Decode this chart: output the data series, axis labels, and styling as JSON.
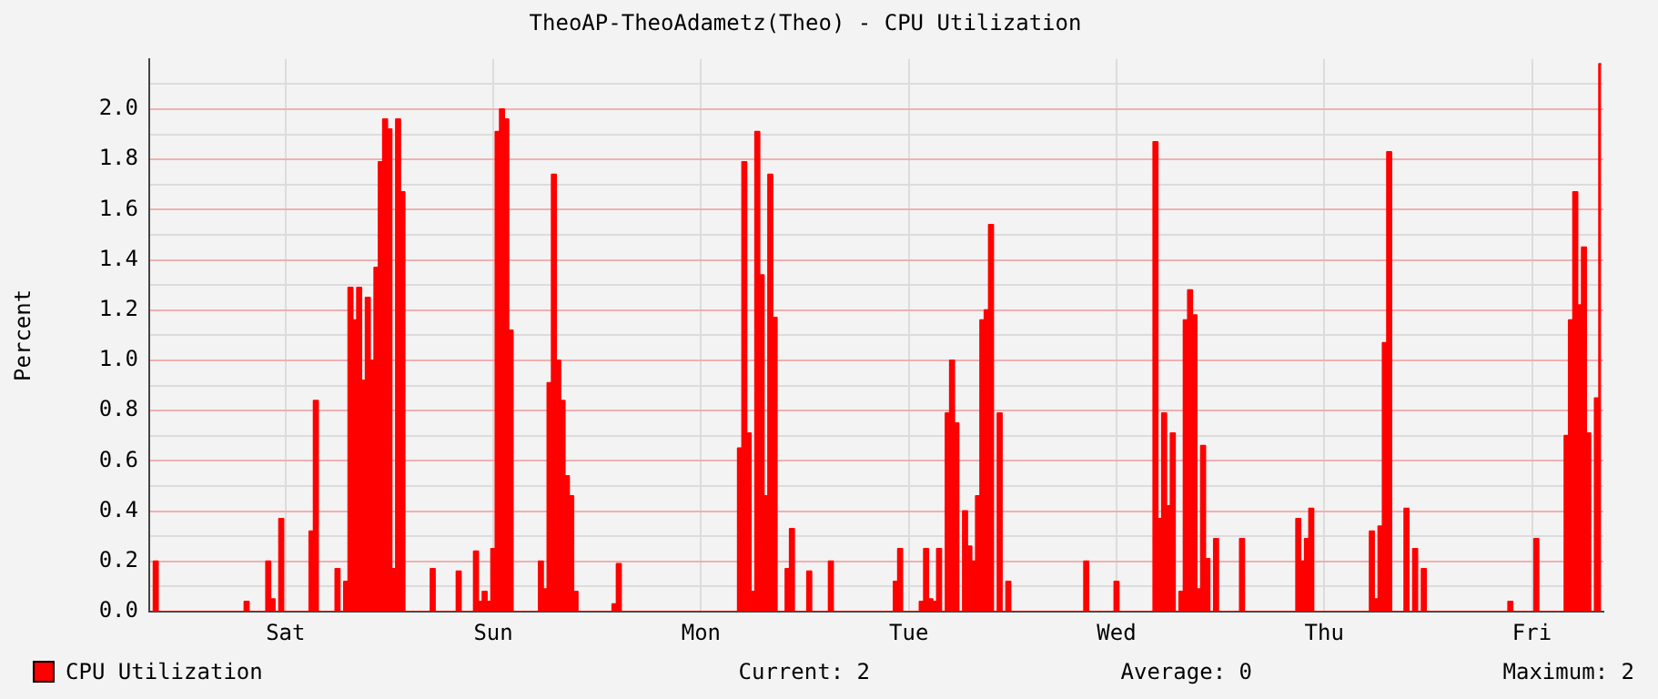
{
  "chart_data": {
    "type": "area",
    "title": "TheoAP-TheoAdametz(Theo) - CPU Utilization",
    "ylabel": "Percent",
    "categories": [
      null,
      null,
      null,
      null,
      null,
      null,
      null,
      null,
      null,
      null,
      null,
      null,
      null,
      null,
      null,
      null,
      null,
      null,
      null,
      null,
      null,
      null,
      null,
      null,
      null,
      null,
      null,
      null,
      null,
      null,
      null,
      "Sat",
      null,
      null,
      null,
      null,
      null,
      null,
      null,
      null,
      null,
      null,
      null,
      null,
      null,
      null,
      null,
      null,
      null,
      null,
      null,
      null,
      null,
      null,
      null,
      null,
      null,
      null,
      null,
      null,
      null,
      null,
      null,
      null,
      null,
      null,
      null,
      null,
      null,
      null,
      null,
      null,
      null,
      null,
      null,
      null,
      null,
      null,
      null,
      "Sun",
      null,
      null,
      null,
      null,
      null,
      null,
      null,
      null,
      null,
      null,
      null,
      null,
      null,
      null,
      null,
      null,
      null,
      null,
      null,
      null,
      null,
      null,
      null,
      null,
      null,
      null,
      null,
      null,
      null,
      null,
      null,
      null,
      null,
      null,
      null,
      null,
      null,
      null,
      null,
      null,
      null,
      null,
      null,
      null,
      null,
      null,
      null,
      "Mon",
      null,
      null,
      null,
      null,
      null,
      null,
      null,
      null,
      null,
      null,
      null,
      null,
      null,
      null,
      null,
      null,
      null,
      null,
      null,
      null,
      null,
      null,
      null,
      null,
      null,
      null,
      null,
      null,
      null,
      null,
      null,
      null,
      null,
      null,
      null,
      null,
      null,
      null,
      null,
      null,
      null,
      null,
      null,
      null,
      null,
      null,
      null,
      "Tue",
      null,
      null,
      null,
      null,
      null,
      null,
      null,
      null,
      null,
      null,
      null,
      null,
      null,
      null,
      null,
      null,
      null,
      null,
      null,
      null,
      null,
      null,
      null,
      null,
      null,
      null,
      null,
      null,
      null,
      null,
      null,
      null,
      null,
      null,
      null,
      null,
      null,
      null,
      null,
      null,
      null,
      null,
      null,
      null,
      null,
      null,
      null,
      "Wed",
      null,
      null,
      null,
      null,
      null,
      null,
      null,
      null,
      null,
      null,
      null,
      null,
      null,
      null,
      null,
      null,
      null,
      null,
      null,
      null,
      null,
      null,
      null,
      null,
      null,
      null,
      null,
      null,
      null,
      null,
      null,
      null,
      null,
      null,
      null,
      null,
      null,
      null,
      null,
      null,
      null,
      null,
      null,
      null,
      null,
      null,
      null,
      "Thu",
      null,
      null,
      null,
      null,
      null,
      null,
      null,
      null,
      null,
      null,
      null,
      null,
      null,
      null,
      null,
      null,
      null,
      null,
      null,
      null,
      null,
      null,
      null,
      null,
      null,
      null,
      null,
      null,
      null,
      null,
      null,
      null,
      null,
      null,
      null,
      null,
      null,
      null,
      null,
      null,
      null,
      null,
      null,
      null,
      null,
      null,
      null,
      "Fri",
      null,
      null,
      null,
      null,
      null,
      null,
      null,
      null,
      null,
      null,
      null,
      null,
      null,
      null,
      null,
      null
    ],
    "ylim": [
      0,
      2.2
    ],
    "yticks": [
      {
        "value": 0,
        "label": "0.0"
      },
      {
        "value": 0.1,
        "label": null
      },
      {
        "value": 0.2,
        "label": "0.2"
      },
      {
        "value": 0.3,
        "label": null
      },
      {
        "value": 0.4,
        "label": "0.4"
      },
      {
        "value": 0.5,
        "label": null
      },
      {
        "value": 0.6,
        "label": "0.6"
      },
      {
        "value": 0.7,
        "label": null
      },
      {
        "value": 0.8,
        "label": "0.8"
      },
      {
        "value": 0.9,
        "label": null
      },
      {
        "value": 1,
        "label": "1.0"
      },
      {
        "value": 1.1,
        "label": null
      },
      {
        "value": 1.2,
        "label": "1.2"
      },
      {
        "value": 1.3,
        "label": null
      },
      {
        "value": 1.4,
        "label": "1.4"
      },
      {
        "value": 1.5,
        "label": null
      },
      {
        "value": 1.6,
        "label": "1.6"
      },
      {
        "value": 1.7,
        "label": null
      },
      {
        "value": 1.8,
        "label": "1.8"
      },
      {
        "value": 1.9,
        "label": null
      },
      {
        "value": 2,
        "label": "2.0"
      },
      {
        "value": 2.1,
        "label": null
      }
    ],
    "grid": true,
    "legend": "bottom",
    "annotations": [
      "Current: 2",
      "Average: 0",
      "Maximum: 2"
    ],
    "series": [
      {
        "name": "CPU Utilization",
        "color": "#ff0000",
        "values": [
          0,
          0.2,
          0,
          0,
          0,
          0,
          0,
          0,
          0,
          0,
          0,
          0,
          0,
          0,
          0,
          0,
          0,
          0,
          0,
          0,
          0,
          0,
          0.04,
          0,
          0,
          0,
          0,
          0.2,
          0.05,
          0,
          0.37,
          0,
          0,
          0,
          0,
          0,
          0,
          0.32,
          0.84,
          0,
          0,
          0,
          0,
          0.17,
          0,
          0.12,
          1.29,
          1.16,
          1.29,
          0.92,
          1.25,
          1.0,
          1.37,
          1.79,
          1.96,
          1.92,
          0.17,
          1.96,
          1.67,
          0,
          0,
          0,
          0,
          0,
          0,
          0.17,
          0,
          0,
          0,
          0,
          0,
          0.16,
          0,
          0,
          0,
          0.24,
          0.04,
          0.08,
          0.04,
          0.25,
          1.91,
          2.0,
          1.96,
          1.12,
          0,
          0,
          0,
          0,
          0,
          0,
          0.2,
          0.09,
          0.91,
          1.74,
          1.0,
          0.84,
          0.54,
          0.46,
          0.08,
          0,
          0,
          0,
          0,
          0,
          0,
          0,
          0,
          0.03,
          0.19,
          0,
          0,
          0,
          0,
          0,
          0,
          0,
          0,
          0,
          0,
          0,
          0,
          0,
          0,
          0,
          0,
          0,
          0,
          0,
          0,
          0,
          0,
          0,
          0,
          0,
          0,
          0,
          0.65,
          1.79,
          0.71,
          0.08,
          1.91,
          1.34,
          0.46,
          1.74,
          1.17,
          0,
          0,
          0.17,
          0.33,
          0,
          0,
          0,
          0.16,
          0,
          0,
          0,
          0,
          0.2,
          0,
          0,
          0,
          0,
          0,
          0,
          0,
          0,
          0,
          0,
          0,
          0,
          0,
          0,
          0.12,
          0.25,
          0,
          0,
          0,
          0,
          0.04,
          0.25,
          0.05,
          0.04,
          0.25,
          0,
          0.79,
          1.0,
          0.75,
          0,
          0.4,
          0.26,
          0.2,
          0.46,
          1.16,
          1.2,
          1.54,
          0,
          0.79,
          0,
          0.12,
          0,
          0,
          0,
          0,
          0,
          0,
          0,
          0,
          0,
          0,
          0,
          0,
          0,
          0,
          0,
          0,
          0,
          0.2,
          0,
          0,
          0,
          0,
          0,
          0,
          0.12,
          0,
          0,
          0,
          0,
          0,
          0,
          0,
          0,
          1.87,
          0.37,
          0.79,
          0.42,
          0.71,
          0,
          0.08,
          1.16,
          1.28,
          1.18,
          0.09,
          0.66,
          0.21,
          0,
          0.29,
          0,
          0,
          0,
          0,
          0,
          0.29,
          0,
          0,
          0,
          0,
          0,
          0,
          0,
          0,
          0,
          0,
          0,
          0,
          0.37,
          0.2,
          0.29,
          0.41,
          0,
          0,
          0,
          0,
          0,
          0,
          0,
          0,
          0,
          0,
          0,
          0,
          0,
          0.32,
          0.05,
          0.34,
          1.07,
          1.83,
          0,
          0,
          0,
          0.41,
          0,
          0.25,
          0,
          0.17,
          0,
          0,
          0,
          0,
          0,
          0,
          0,
          0,
          0,
          0,
          0,
          0,
          0,
          0,
          0,
          0,
          0,
          0,
          0,
          0.04,
          0,
          0,
          0,
          0,
          0,
          0.29,
          0,
          0,
          0,
          0,
          0,
          0,
          0.7,
          1.16,
          1.67,
          1.22,
          1.45,
          0.71,
          0,
          0.85,
          2.18
        ]
      }
    ]
  }
}
